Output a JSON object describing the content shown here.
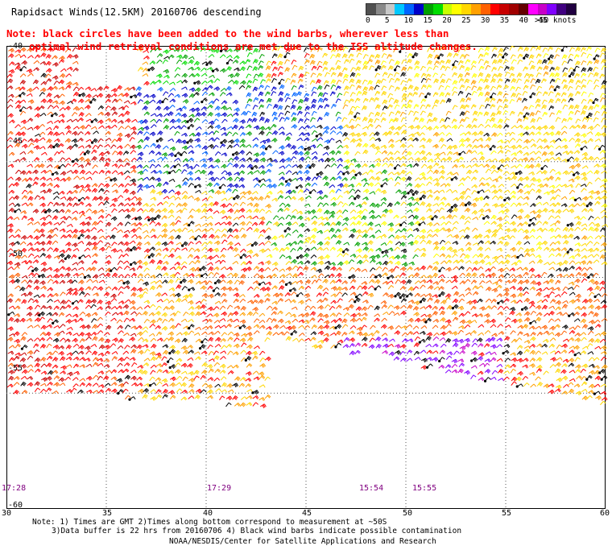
{
  "title": "Rapidsact Winds(12.5KM) 20160706 descending",
  "note": {
    "line1": "Note: black circles have been added to the wind barbs, wherever less than",
    "line2": "optimal wind retrieval conditions are met due to the ISS altitude changes."
  },
  "legend": {
    "colors": [
      "#505050",
      "#8a8a8a",
      "#c8c8c8",
      "#00c8ff",
      "#0064ff",
      "#0000c8",
      "#00a000",
      "#00dc00",
      "#c8ff00",
      "#ffff00",
      "#ffd700",
      "#ffa000",
      "#ff6000",
      "#ff0000",
      "#c80000",
      "#a00000",
      "#640000",
      "#ff00ff",
      "#c800c8",
      "#8000ff",
      "#400080",
      "#200040"
    ],
    "labels": [
      "0",
      "5",
      "10",
      "15",
      "20",
      "25",
      "30",
      "35",
      "40",
      "45",
      ">50 knots"
    ],
    "unit": "knots"
  },
  "axes": {
    "lat_labels": [
      "-40",
      "-45",
      "-50",
      "-55",
      "-60"
    ],
    "lon_labels": [
      "30",
      "35",
      "40",
      "45",
      "50",
      "55",
      "60"
    ]
  },
  "times": [
    "17:28",
    "17:29",
    "15:54",
    "15:55"
  ],
  "footer": {
    "line1": "Note: 1) Times are GMT 2)Times along bottom correspond to measurement at ~50S",
    "line2": "3)Data buffer is 22 hrs from 20160706 4) Black wind barbs indicate possible contamination",
    "line3": "NOAA/NESDIS/Center for Satellite Applications and Research"
  }
}
